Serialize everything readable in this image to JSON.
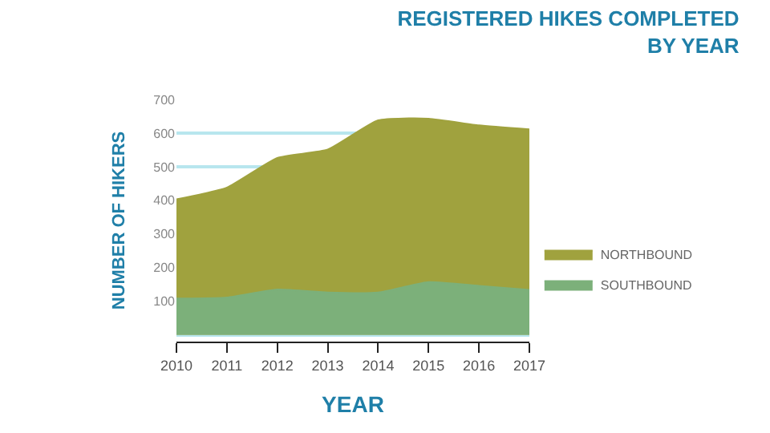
{
  "chart_data": {
    "type": "area",
    "title": "REGISTERED HIKES COMPLETED\nBY YEAR",
    "xlabel": "YEAR",
    "ylabel": "NUMBER OF HIKERS",
    "x": [
      2010,
      2011,
      2012,
      2013,
      2014,
      2015,
      2016,
      2017
    ],
    "xlim": [
      2010,
      2017
    ],
    "xticks": [
      2010,
      2011,
      2012,
      2013,
      2014,
      2015,
      2016,
      2017
    ],
    "ylim": [
      -20,
      700
    ],
    "yticks": [
      {
        "value": 0,
        "label": null
      },
      100,
      200,
      300,
      400,
      500,
      600,
      700
    ],
    "series": [
      {
        "name": "NORTHBOUND",
        "color": "#a0a23e",
        "values": [
          403,
          438,
          526,
          551,
          638,
          643,
          623,
          611
        ]
      },
      {
        "name": "SOUTHBOUND",
        "color": "#7cb07a",
        "values": [
          108,
          111,
          135,
          126,
          126,
          157,
          146,
          134
        ]
      }
    ],
    "grid": "y",
    "legend": "right"
  }
}
